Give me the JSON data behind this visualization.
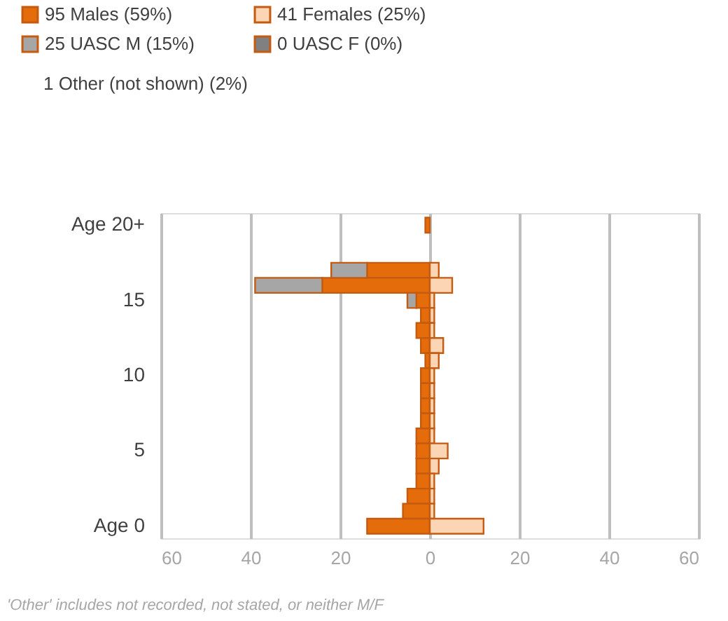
{
  "chart_data": {
    "type": "bar",
    "orientation": "horizontal",
    "stacked": true,
    "categories": [
      "Age 20+",
      null,
      null,
      null,
      null,
      "15",
      null,
      null,
      null,
      null,
      "10",
      null,
      null,
      null,
      null,
      "5",
      null,
      null,
      null,
      null,
      "Age 0"
    ],
    "series": [
      {
        "name": "95 Males (59%)",
        "color": "#e46c0a",
        "values": [
          -1,
          0,
          0,
          -14,
          -24,
          -3,
          -2,
          -3,
          -2,
          -1,
          -2,
          -2,
          -2,
          -2,
          -3,
          -3,
          -3,
          -3,
          -5,
          -6,
          -14
        ]
      },
      {
        "name": "25 UASC M (15%)",
        "color": "#a6a6a6",
        "values": [
          0,
          0,
          0,
          -8,
          -15,
          -2,
          0,
          0,
          0,
          0,
          0,
          0,
          0,
          0,
          0,
          0,
          0,
          0,
          0,
          0,
          0
        ]
      },
      {
        "name": "41 Females (25%)",
        "color": "#fcd5b4",
        "values": [
          0,
          0,
          0,
          2,
          5,
          1,
          1,
          1,
          3,
          2,
          1,
          1,
          1,
          1,
          1,
          4,
          2,
          1,
          1,
          1,
          12
        ]
      },
      {
        "name": "0 UASC F (0%)",
        "color": "#808080",
        "values": [
          0,
          0,
          0,
          0,
          0,
          0,
          0,
          0,
          0,
          0,
          0,
          0,
          0,
          0,
          0,
          0,
          0,
          0,
          0,
          0,
          0
        ]
      }
    ],
    "xlim": [
      -60,
      60
    ],
    "xticks": [
      {
        "value": -60,
        "label": "60"
      },
      {
        "value": -40,
        "label": "40"
      },
      {
        "value": -20,
        "label": "20"
      },
      0,
      20,
      40,
      60
    ],
    "grid": "x",
    "legend": "top",
    "annotations": [
      "1 Other (not shown) (2%)",
      "'Other' includes not recorded, not stated, or neither M/F"
    ]
  }
}
